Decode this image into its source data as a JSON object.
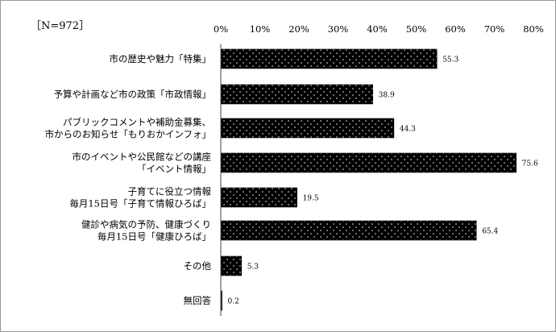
{
  "chart_data": {
    "type": "bar",
    "orientation": "horizontal",
    "sample_note": "［N=972］",
    "title": "",
    "xlabel": "",
    "ylabel": "",
    "xlim": [
      0,
      80
    ],
    "x_ticks": [
      "0%",
      "10%",
      "20%",
      "30%",
      "40%",
      "50%",
      "60%",
      "70%",
      "80%"
    ],
    "grid": false,
    "legend": "none",
    "categories": [
      [
        "市の歴史や魅力「特集」"
      ],
      [
        "予算や計画など市の政策「市政情報」"
      ],
      [
        "パブリックコメントや補助金募集、",
        "市からのお知らせ「もりおかインフォ」"
      ],
      [
        "市のイベントや公民館などの講座",
        "「イベント情報」"
      ],
      [
        "子育てに役立つ情報",
        "毎月15日号「子育て情報ひろば」"
      ],
      [
        "健診や病気の予防、健康づくり",
        "毎月15日号「健康ひろば」"
      ],
      [
        "その他"
      ],
      [
        "無回答"
      ]
    ],
    "values": [
      55.3,
      38.9,
      44.3,
      75.6,
      19.5,
      65.4,
      5.3,
      0.2
    ],
    "value_labels": [
      "55.3",
      "38.9",
      "44.3",
      "75.6",
      "19.5",
      "65.4",
      "5.3",
      "0.2"
    ],
    "colors": {
      "bar": "#000000",
      "dot": "#ffffff",
      "axis": "#444444",
      "border": "#9a9a9a"
    }
  }
}
